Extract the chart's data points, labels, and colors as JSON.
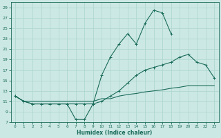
{
  "bg_color": "#cce8e4",
  "grid_color": "#b0d8d2",
  "line_color": "#1a6b5a",
  "xlabel": "Humidex (Indice chaleur)",
  "xlim": [
    -0.5,
    23.5
  ],
  "ylim": [
    7,
    30
  ],
  "yticks": [
    7,
    9,
    11,
    13,
    15,
    17,
    19,
    21,
    23,
    25,
    27,
    29
  ],
  "xticks": [
    0,
    1,
    2,
    3,
    4,
    5,
    6,
    7,
    8,
    9,
    10,
    11,
    12,
    13,
    14,
    15,
    16,
    17,
    18,
    19,
    20,
    21,
    22,
    23
  ],
  "curve1_x": [
    0,
    1,
    2,
    3,
    4,
    5,
    6,
    7,
    8,
    9,
    10,
    11,
    12,
    13,
    14,
    15,
    16,
    17,
    18,
    19,
    20,
    21,
    22,
    23
  ],
  "curve1_y": [
    12,
    11,
    10.5,
    10.5,
    10.5,
    10.5,
    10.5,
    7.5,
    7.5,
    10.5,
    16,
    19.5,
    22,
    24,
    22,
    26,
    28.5,
    28,
    24,
    null,
    null,
    null,
    null,
    null
  ],
  "curve1_markers": [
    0,
    1,
    2,
    3,
    4,
    5,
    6,
    7,
    8,
    9,
    10,
    11,
    12,
    13,
    14,
    15,
    16,
    17,
    18
  ],
  "curve2_x": [
    0,
    1,
    2,
    3,
    4,
    5,
    6,
    7,
    8,
    9,
    10,
    11,
    12,
    13,
    14,
    15,
    16,
    17,
    18,
    19,
    20,
    21,
    22,
    23
  ],
  "curve2_y": [
    12,
    11,
    10.5,
    10.5,
    10.5,
    10.5,
    10.5,
    10.5,
    10.5,
    10.5,
    11,
    12,
    13,
    14.5,
    16,
    17,
    17.5,
    18,
    18.5,
    19.5,
    20,
    18.5,
    18,
    15.5
  ],
  "curve3_x": [
    0,
    1,
    2,
    3,
    4,
    5,
    6,
    7,
    8,
    9,
    10,
    11,
    12,
    13,
    14,
    15,
    16,
    17,
    18,
    19,
    20,
    21,
    22,
    23
  ],
  "curve3_y": [
    12,
    11,
    11,
    11,
    11,
    11,
    11,
    11,
    11,
    11,
    11.5,
    11.5,
    12,
    12.3,
    12.5,
    12.8,
    13,
    13.2,
    13.5,
    13.7,
    14,
    14,
    14,
    14
  ]
}
